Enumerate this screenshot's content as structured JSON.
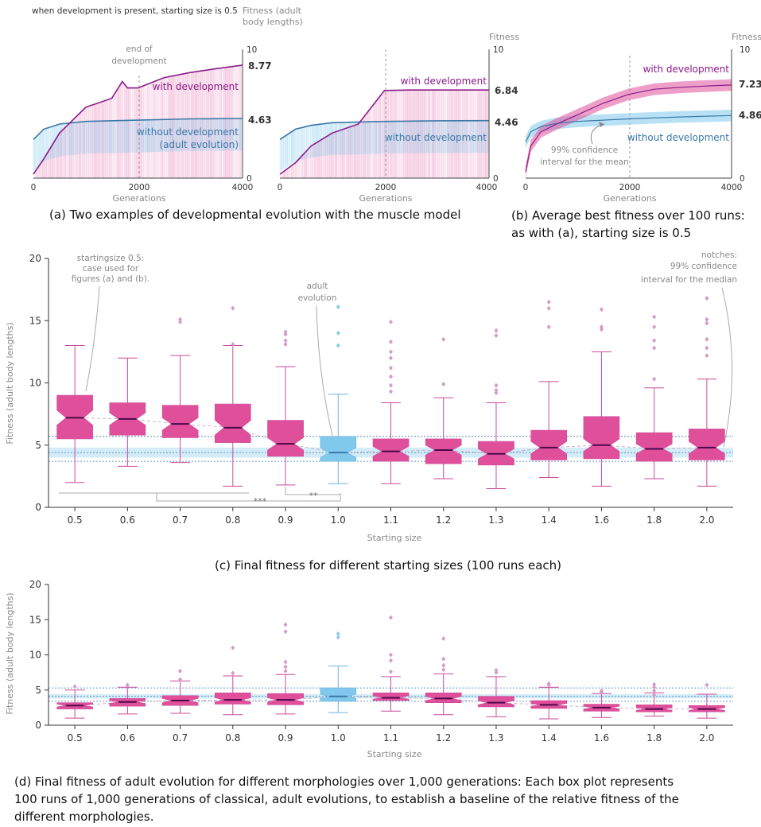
{
  "header_note": "when development is present, starting size is 0.5",
  "colors": {
    "dev": "#e0509a",
    "dev_dark": "#8a1a8a",
    "adult": "#80c8ec",
    "adult_dark": "#3a78a8"
  },
  "panel_a": {
    "caption": "(a) Two examples of developmental evolution with the muscle model",
    "ylabel_left_1": "Fitness (adult",
    "ylabel_left_2": "body lengths)",
    "ylabel_right": "Fitness",
    "xlabel": "Generations",
    "end_dev_1": "end of",
    "end_dev_2": "development",
    "with_dev": "with development",
    "without_dev": "without development",
    "adult_evo": "(adult evolution)",
    "ex1_with_value": "8.77",
    "ex1_without_value": "4.63",
    "ex2_with_value": "6.84",
    "ex2_without_value": "4.46",
    "xticks": [
      "0",
      "2000",
      "4000"
    ],
    "yticks": [
      "0",
      "10"
    ]
  },
  "panel_b": {
    "caption_1": "(b) Average best fitness over 100 runs:",
    "caption_2": "as with (a), starting size is 0.5",
    "ylabel": "Fitness",
    "xlabel": "Generations",
    "with_dev": "with development",
    "without_dev": "without development",
    "ci_1": "99% confidence",
    "ci_2": "interval for the mean",
    "with_value": "7.23",
    "without_value": "4.86",
    "xticks": [
      "0",
      "2000",
      "4000"
    ],
    "yticks": [
      "0",
      "10"
    ]
  },
  "panel_c": {
    "caption": "(c) Final fitness for different starting sizes (100 runs each)",
    "ylabel": "Fitness (adult body lengths)",
    "xlabel": "Starting size",
    "ann_start_1": "startingsize 0.5:",
    "ann_start_2": "case used for",
    "ann_start_3": "figures (a) and (b).",
    "ann_adult_1": "adult",
    "ann_adult_2": "evolution",
    "ann_notch_1": "notches:",
    "ann_notch_2": "99% confidence",
    "ann_notch_3": "interval for the median",
    "sig_1": "***",
    "sig_2": "**"
  },
  "panel_d": {
    "caption_1": "(d) Final fitness of adult evolution for different morphologies over 1,000 generations: Each box plot represents",
    "caption_2": "100 runs of 1,000 generations of classical, adult evolutions, to establish a baseline of the relative fitness of the",
    "caption_3": "different morphologies.",
    "ylabel": "Fitness (adult body lengths)",
    "xlabel": "Starting size"
  },
  "chart_data": [
    {
      "type": "line",
      "title": "",
      "xlabel": "Generations",
      "ylabel": "Fitness (adult body lengths)",
      "xlim": [
        0,
        4000
      ],
      "ylim": [
        0,
        10
      ],
      "series": [
        {
          "name": "with development",
          "x": [
            0,
            200,
            500,
            1000,
            1500,
            1700,
            1800,
            2000,
            2500,
            3000,
            3500,
            4000
          ],
          "y": [
            0.3,
            1.5,
            3.5,
            5.5,
            6.2,
            7.5,
            7.0,
            7.0,
            7.8,
            8.2,
            8.5,
            8.77
          ]
        },
        {
          "name": "without development",
          "x": [
            0,
            200,
            500,
            1000,
            2000,
            3000,
            4000
          ],
          "y": [
            3.0,
            3.8,
            4.2,
            4.4,
            4.5,
            4.6,
            4.63
          ]
        }
      ]
    },
    {
      "type": "line",
      "title": "",
      "xlabel": "Generations",
      "ylabel": "Fitness",
      "xlim": [
        0,
        4000
      ],
      "ylim": [
        0,
        10
      ],
      "series": [
        {
          "name": "with development",
          "x": [
            0,
            300,
            600,
            1000,
            1500,
            2000,
            2500,
            3000,
            4000
          ],
          "y": [
            0.3,
            1.2,
            2.5,
            3.5,
            4.2,
            6.8,
            6.84,
            6.84,
            6.84
          ]
        },
        {
          "name": "without development",
          "x": [
            0,
            300,
            600,
            1000,
            2000,
            3000,
            4000
          ],
          "y": [
            3.0,
            3.8,
            4.1,
            4.3,
            4.4,
            4.45,
            4.46
          ]
        }
      ]
    },
    {
      "type": "line",
      "title": "",
      "xlabel": "Generations",
      "ylabel": "Fitness",
      "xlim": [
        0,
        4000
      ],
      "ylim": [
        0,
        10
      ],
      "series": [
        {
          "name": "with development",
          "x": [
            0,
            100,
            300,
            600,
            1000,
            1500,
            2000,
            2500,
            3000,
            3500,
            4000
          ],
          "y": [
            0.5,
            2.5,
            3.6,
            4.2,
            4.9,
            5.8,
            6.5,
            6.9,
            7.05,
            7.15,
            7.23
          ]
        },
        {
          "name": "without development",
          "x": [
            0,
            100,
            300,
            600,
            1000,
            1500,
            2000,
            2500,
            3000,
            3500,
            4000
          ],
          "y": [
            2.8,
            3.6,
            4.0,
            4.25,
            4.4,
            4.5,
            4.6,
            4.68,
            4.75,
            4.8,
            4.86
          ]
        }
      ]
    },
    {
      "type": "box",
      "title": "",
      "xlabel": "Starting size",
      "ylabel": "Fitness (adult body lengths)",
      "ylim": [
        0,
        20
      ],
      "yticks": [
        0,
        5,
        10,
        15,
        20
      ],
      "categories": [
        "0.5",
        "0.6",
        "0.7",
        "0.8",
        "0.9",
        "1.0",
        "1.1",
        "1.2",
        "1.3",
        "1.4",
        "1.6",
        "1.8",
        "2.0"
      ],
      "reference_category": "1.0",
      "boxes": [
        {
          "min": 2.0,
          "q1": 5.5,
          "median": 7.2,
          "q3": 9.0,
          "max": 13.0,
          "notch_lo": 6.6,
          "notch_hi": 7.8,
          "outliers": []
        },
        {
          "min": 3.3,
          "q1": 5.8,
          "median": 7.1,
          "q3": 8.4,
          "max": 12.0,
          "notch_lo": 6.6,
          "notch_hi": 7.6,
          "outliers": []
        },
        {
          "min": 3.6,
          "q1": 5.6,
          "median": 6.7,
          "q3": 8.2,
          "max": 12.2,
          "notch_lo": 6.2,
          "notch_hi": 7.2,
          "outliers": [
            14.9,
            15.1
          ]
        },
        {
          "min": 1.7,
          "q1": 5.2,
          "median": 6.4,
          "q3": 8.3,
          "max": 13.0,
          "notch_lo": 5.8,
          "notch_hi": 7.0,
          "outliers": [
            13.1,
            16.0
          ]
        },
        {
          "min": 1.8,
          "q1": 4.1,
          "median": 5.1,
          "q3": 7.0,
          "max": 11.3,
          "notch_lo": 4.6,
          "notch_hi": 5.6,
          "outliers": [
            13.1,
            13.4,
            13.9,
            14.1
          ]
        },
        {
          "min": 1.9,
          "q1": 3.7,
          "median": 4.4,
          "q3": 5.7,
          "max": 9.1,
          "notch_lo": 4.0,
          "notch_hi": 4.8,
          "outliers": [
            13.0,
            14.0,
            16.1
          ]
        },
        {
          "min": 1.9,
          "q1": 3.7,
          "median": 4.5,
          "q3": 5.5,
          "max": 8.4,
          "notch_lo": 4.1,
          "notch_hi": 4.9,
          "outliers": [
            9.3,
            9.8,
            10.5,
            11.2,
            12.0,
            12.5,
            13.3,
            14.9
          ]
        },
        {
          "min": 2.3,
          "q1": 3.5,
          "median": 4.6,
          "q3": 5.5,
          "max": 8.8,
          "notch_lo": 4.2,
          "notch_hi": 5.0,
          "outliers": [
            9.9,
            13.5
          ]
        },
        {
          "min": 1.5,
          "q1": 3.4,
          "median": 4.3,
          "q3": 5.3,
          "max": 8.4,
          "notch_lo": 3.9,
          "notch_hi": 4.7,
          "outliers": [
            9.2,
            9.4,
            9.8,
            13.8,
            14.2
          ]
        },
        {
          "min": 2.4,
          "q1": 3.8,
          "median": 4.8,
          "q3": 6.2,
          "max": 10.1,
          "notch_lo": 4.3,
          "notch_hi": 5.3,
          "outliers": [
            14.5,
            16.0,
            16.5
          ]
        },
        {
          "min": 1.7,
          "q1": 3.9,
          "median": 5.0,
          "q3": 7.3,
          "max": 12.5,
          "notch_lo": 4.5,
          "notch_hi": 5.5,
          "outliers": [
            14.3,
            14.5,
            15.9
          ]
        },
        {
          "min": 2.3,
          "q1": 3.7,
          "median": 4.7,
          "q3": 6.0,
          "max": 9.6,
          "notch_lo": 4.3,
          "notch_hi": 5.1,
          "outliers": [
            10.3,
            12.8,
            13.4,
            14.5,
            15.3
          ]
        },
        {
          "min": 1.7,
          "q1": 3.8,
          "median": 4.8,
          "q3": 6.3,
          "max": 10.3,
          "notch_lo": 4.3,
          "notch_hi": 5.3,
          "outliers": [
            12.2,
            12.8,
            13.5,
            14.8,
            15.1,
            16.8
          ]
        }
      ]
    },
    {
      "type": "box",
      "title": "",
      "xlabel": "Starting size",
      "ylabel": "Fitness (adult body lengths)",
      "ylim": [
        0,
        20
      ],
      "yticks": [
        0,
        5,
        10,
        15,
        20
      ],
      "categories": [
        "0.5",
        "0.6",
        "0.7",
        "0.8",
        "0.9",
        "1.0",
        "1.1",
        "1.2",
        "1.3",
        "1.4",
        "1.6",
        "1.8",
        "2.0"
      ],
      "reference_category": "1.0",
      "boxes": [
        {
          "min": 1.0,
          "q1": 2.3,
          "median": 2.8,
          "q3": 3.2,
          "max": 5.0,
          "notch_lo": 2.6,
          "notch_hi": 3.0,
          "outliers": [
            5.5
          ]
        },
        {
          "min": 1.6,
          "q1": 2.7,
          "median": 3.3,
          "q3": 3.8,
          "max": 5.4,
          "notch_lo": 3.1,
          "notch_hi": 3.5,
          "outliers": [
            5.7
          ]
        },
        {
          "min": 1.7,
          "q1": 2.8,
          "median": 3.5,
          "q3": 4.2,
          "max": 6.3,
          "notch_lo": 3.2,
          "notch_hi": 3.8,
          "outliers": [
            6.5,
            7.7
          ]
        },
        {
          "min": 1.5,
          "q1": 3.0,
          "median": 3.6,
          "q3": 4.6,
          "max": 7.0,
          "notch_lo": 3.3,
          "notch_hi": 3.9,
          "outliers": [
            7.4,
            11.0
          ]
        },
        {
          "min": 1.6,
          "q1": 2.9,
          "median": 3.6,
          "q3": 4.5,
          "max": 7.2,
          "notch_lo": 3.3,
          "notch_hi": 3.9,
          "outliers": [
            7.7,
            8.3,
            9.0,
            13.3,
            14.3
          ]
        },
        {
          "min": 1.8,
          "q1": 3.4,
          "median": 4.1,
          "q3": 5.3,
          "max": 8.4,
          "notch_lo": 3.8,
          "notch_hi": 4.4,
          "outliers": [
            12.5,
            13.0
          ]
        },
        {
          "min": 2.0,
          "q1": 3.5,
          "median": 3.9,
          "q3": 4.6,
          "max": 6.9,
          "notch_lo": 3.7,
          "notch_hi": 4.2,
          "outliers": [
            7.6,
            9.2,
            10.0,
            15.3
          ]
        },
        {
          "min": 1.5,
          "q1": 3.2,
          "median": 3.8,
          "q3": 4.6,
          "max": 7.3,
          "notch_lo": 3.5,
          "notch_hi": 4.1,
          "outliers": [
            7.9,
            8.5,
            9.4,
            12.3
          ]
        },
        {
          "min": 1.2,
          "q1": 2.6,
          "median": 3.2,
          "q3": 4.1,
          "max": 6.9,
          "notch_lo": 2.9,
          "notch_hi": 3.5,
          "outliers": [
            7.5,
            7.8
          ]
        },
        {
          "min": 0.9,
          "q1": 2.4,
          "median": 2.9,
          "q3": 3.5,
          "max": 5.4,
          "notch_lo": 2.7,
          "notch_hi": 3.1,
          "outliers": [
            5.7,
            5.9
          ]
        },
        {
          "min": 1.1,
          "q1": 2.0,
          "median": 2.5,
          "q3": 3.0,
          "max": 4.5,
          "notch_lo": 2.3,
          "notch_hi": 2.7,
          "outliers": [
            4.7,
            4.9
          ]
        },
        {
          "min": 1.3,
          "q1": 1.9,
          "median": 2.3,
          "q3": 2.9,
          "max": 4.6,
          "notch_lo": 2.1,
          "notch_hi": 2.5,
          "outliers": [
            4.3,
            4.9,
            5.4,
            5.8
          ]
        },
        {
          "min": 1.0,
          "q1": 1.9,
          "median": 2.3,
          "q3": 2.8,
          "max": 4.4,
          "notch_lo": 2.1,
          "notch_hi": 2.5,
          "outliers": [
            5.7
          ]
        }
      ]
    }
  ]
}
